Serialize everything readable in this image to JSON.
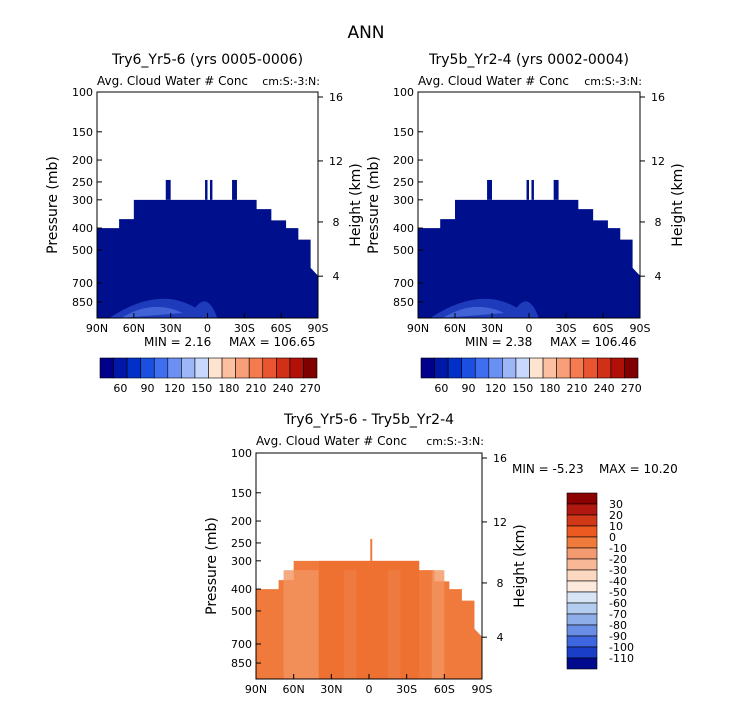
{
  "figure_title": "ANN",
  "colors": {
    "top_fill": "#000f8c",
    "diff_fill": "#f07a3c",
    "diff_fill_alt": "#f29560",
    "diff_fill_dark": "#ec6a2a"
  },
  "chart_data": [
    {
      "type": "heatmap",
      "id": "panel1",
      "title": "Try6_Yr5-6 (yrs 0005-0006)",
      "subtitle": "Avg. Cloud Water # Conc",
      "units_label": "cm:S:-3:N:",
      "ylabel": "Pressure (mb)",
      "ylabel_right": "Height (km)",
      "xticks": [
        "90N",
        "60N",
        "30N",
        "0",
        "30S",
        "60S",
        "90S"
      ],
      "x_range": [
        90,
        -90
      ],
      "yticks": [
        100,
        150,
        200,
        250,
        300,
        400,
        500,
        700,
        850
      ],
      "y_range": [
        100,
        1000
      ],
      "right_ticks": [
        16,
        12,
        8,
        4
      ],
      "min_text": "MIN =   2.16",
      "max_text": "MAX = 106.65",
      "colorbar_labels": [
        "60",
        "90",
        "120",
        "150",
        "180",
        "210",
        "240",
        "270"
      ]
    },
    {
      "type": "heatmap",
      "id": "panel2",
      "title": "Try5b_Yr2-4 (yrs 0002-0004)",
      "subtitle": "Avg. Cloud Water # Conc",
      "units_label": "cm:S:-3:N:",
      "ylabel": "Pressure (mb)",
      "ylabel_right": "Height (km)",
      "xticks": [
        "90N",
        "60N",
        "30N",
        "0",
        "30S",
        "60S",
        "90S"
      ],
      "x_range": [
        90,
        -90
      ],
      "yticks": [
        100,
        150,
        200,
        250,
        300,
        400,
        500,
        700,
        850
      ],
      "y_range": [
        100,
        1000
      ],
      "right_ticks": [
        16,
        12,
        8,
        4
      ],
      "min_text": "MIN =   2.38",
      "max_text": "MAX = 106.46",
      "colorbar_labels": [
        "60",
        "90",
        "120",
        "150",
        "180",
        "210",
        "240",
        "270"
      ]
    },
    {
      "type": "heatmap",
      "id": "panel3",
      "title": "Try6_Yr5-6 - Try5b_Yr2-4",
      "subtitle": "Avg. Cloud Water # Conc",
      "units_label": "cm:S:-3:N:",
      "ylabel": "Pressure (mb)",
      "ylabel_right": "Height (km)",
      "xticks": [
        "90N",
        "60N",
        "30N",
        "0",
        "30S",
        "60S",
        "90S"
      ],
      "x_range": [
        90,
        -90
      ],
      "yticks": [
        100,
        150,
        200,
        250,
        300,
        400,
        500,
        700,
        850
      ],
      "y_range": [
        100,
        1000
      ],
      "right_ticks": [
        16,
        12,
        8,
        4
      ],
      "min_text": "MIN =  -5.23",
      "max_text": "MAX =  10.20",
      "colorbar_labels": [
        "30",
        "20",
        "10",
        "0",
        "-10",
        "-20",
        "-30",
        "-40",
        "-50",
        "-60",
        "-70",
        "-80",
        "-90",
        "-100",
        "-110"
      ]
    }
  ]
}
